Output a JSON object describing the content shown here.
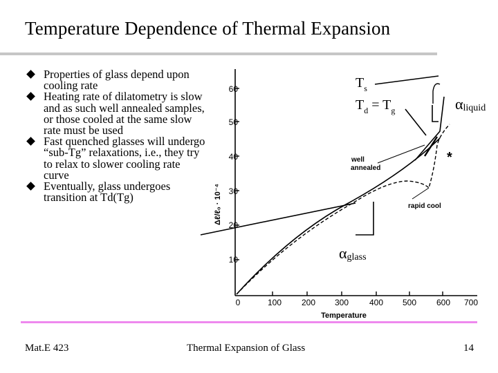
{
  "slide": {
    "title": "Temperature Dependence of Thermal Expansion",
    "bullets": [
      "Properties of glass depend upon cooling rate",
      "Heating rate of dilatometry is slow and as such well annealed samples, or those cooled at the same slow rate must be used",
      "Fast quenched glasses will undergo “sub-Tg” relaxations, i.e., they try to relax to slower cooling rate curve",
      "Eventually, glass undergoes transition at Td(Tg)"
    ],
    "footer": {
      "left": "Mat.E 423",
      "center": "Thermal Expansion of Glass",
      "right": "14"
    },
    "colors": {
      "footer_rule": "#ee88ee",
      "title_rule": "#c6c6c6"
    }
  },
  "figure": {
    "xlabel": "Temperature",
    "ylabel": "Δℓ/ℓ₀ · 10⁻⁴",
    "x_ticks": [
      "0",
      "100",
      "200",
      "300",
      "400",
      "500",
      "600",
      "700"
    ],
    "y_ticks": [
      "10",
      "20",
      "30",
      "40",
      "50",
      "60"
    ],
    "curve_labels": {
      "annealed_line1": "well",
      "annealed_line2": "annealed",
      "rapid": "rapid cool",
      "star": "*"
    },
    "annotations": {
      "ts_main": "T",
      "ts_sub": "s",
      "td_main": "T",
      "td_sub": "d",
      "td_eq": " = T",
      "tg_sub": "g",
      "alpha": "α",
      "alpha_liquid_sub": "liquid",
      "alpha_glass_sub": "glass"
    }
  }
}
